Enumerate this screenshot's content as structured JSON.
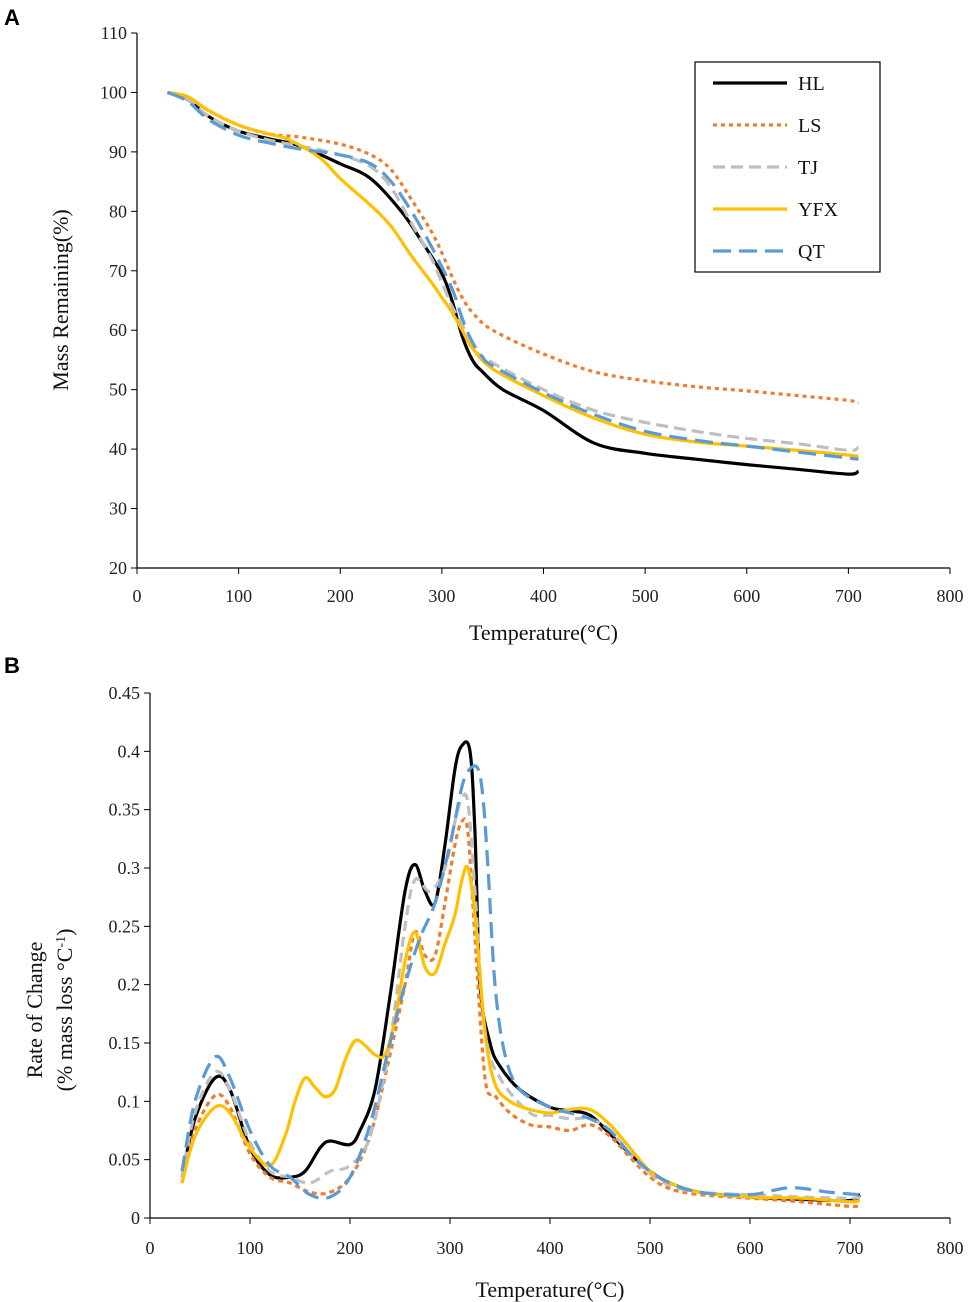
{
  "chart_data": [
    {
      "panel_label": "A",
      "type": "line",
      "title": "",
      "xlabel": "Temperature(°C)",
      "ylabel": "Mass Remaining(%)",
      "xlim": [
        0,
        800
      ],
      "ylim": [
        20,
        110
      ],
      "xticks": [
        0,
        100,
        200,
        300,
        400,
        500,
        600,
        700,
        800
      ],
      "yticks": [
        20,
        30,
        40,
        50,
        60,
        70,
        80,
        90,
        100,
        110
      ],
      "grid": false,
      "legend_position": "top-right",
      "series": [
        {
          "name": "HL",
          "color": "#000000",
          "dash": "solid",
          "x": [
            30,
            50,
            70,
            100,
            130,
            160,
            200,
            230,
            260,
            280,
            300,
            310,
            320,
            330,
            340,
            360,
            400,
            450,
            500,
            550,
            600,
            650,
            700,
            710
          ],
          "y": [
            100,
            98.8,
            96,
            93.5,
            92.2,
            91,
            88,
            85.5,
            80,
            75,
            69.5,
            65,
            59,
            55,
            53,
            50,
            46.5,
            41,
            39.3,
            38.3,
            37.4,
            36.6,
            35.8,
            36.3
          ]
        },
        {
          "name": "LS",
          "color": "#ED7D31",
          "dash": "4 4",
          "x": [
            30,
            50,
            70,
            100,
            130,
            160,
            200,
            230,
            250,
            270,
            290,
            300,
            310,
            320,
            330,
            350,
            400,
            450,
            500,
            550,
            600,
            650,
            700,
            710
          ],
          "y": [
            100,
            99,
            97,
            94.5,
            93,
            92.5,
            91.3,
            89.5,
            87,
            82,
            76.5,
            73,
            69,
            65.5,
            63,
            60,
            56,
            53,
            51.5,
            50.5,
            49.8,
            49,
            48.2,
            47.8
          ]
        },
        {
          "name": "TJ",
          "color": "#BFBFBF",
          "dash": "12 6",
          "x": [
            30,
            50,
            70,
            100,
            130,
            160,
            200,
            230,
            250,
            270,
            290,
            300,
            310,
            320,
            330,
            350,
            400,
            450,
            500,
            550,
            600,
            650,
            700,
            710
          ],
          "y": [
            100,
            98.8,
            96,
            93.5,
            92,
            91,
            89.5,
            87.5,
            84,
            78,
            72,
            68,
            64,
            61,
            57,
            54.5,
            50,
            46.5,
            44.5,
            43,
            41.8,
            40.9,
            39.8,
            40.3
          ]
        },
        {
          "name": "YFX",
          "color": "#FFC000",
          "dash": "solid",
          "x": [
            30,
            50,
            70,
            100,
            130,
            150,
            180,
            200,
            230,
            250,
            270,
            290,
            300,
            310,
            320,
            330,
            350,
            400,
            450,
            500,
            550,
            600,
            650,
            700,
            710
          ],
          "y": [
            100,
            99.3,
            97,
            94.5,
            93,
            92,
            89,
            85.5,
            81,
            77.5,
            72.5,
            68,
            65.5,
            63,
            60,
            57,
            53.5,
            49,
            45.2,
            42.5,
            41.2,
            40.5,
            39.8,
            39,
            38.8
          ]
        },
        {
          "name": "QT",
          "color": "#5B9BD5",
          "dash": "18 8",
          "x": [
            30,
            50,
            70,
            100,
            130,
            160,
            200,
            230,
            250,
            270,
            290,
            310,
            320,
            330,
            340,
            350,
            400,
            450,
            500,
            550,
            600,
            650,
            700,
            710
          ],
          "y": [
            100,
            98.5,
            95.5,
            92.8,
            91.5,
            90.5,
            89.5,
            88,
            85,
            80,
            74,
            67,
            62,
            58,
            55.5,
            54,
            49.5,
            45.8,
            43,
            41.5,
            40.5,
            39.5,
            38.5,
            38.3
          ]
        }
      ]
    },
    {
      "panel_label": "B",
      "type": "line",
      "title": "",
      "xlabel": "Temperature(°C)",
      "ylabel": "Rate of  Change",
      "ylabel_line2": "(% mass loss °C",
      "ylabel_sup": "-1",
      "ylabel_close": ")",
      "xlim": [
        0,
        800
      ],
      "ylim": [
        0,
        0.45
      ],
      "xticks": [
        0,
        100,
        200,
        300,
        400,
        500,
        600,
        700,
        800
      ],
      "yticks": [
        0,
        0.05,
        0.1,
        0.15,
        0.2,
        0.25,
        0.3,
        0.35,
        0.4,
        0.45
      ],
      "ytick_labels": [
        "0",
        "0.05",
        "0.1",
        "0.15",
        "0.2",
        "0.25",
        "0.3",
        "0.35",
        "0.4",
        "0.45"
      ],
      "grid": false,
      "series": [
        {
          "name": "HL",
          "color": "#000000",
          "dash": "solid",
          "x": [
            32,
            45,
            65,
            80,
            100,
            120,
            140,
            155,
            170,
            180,
            200,
            210,
            225,
            240,
            255,
            265,
            275,
            285,
            295,
            305,
            312,
            320,
            325,
            330,
            340,
            350,
            370,
            400,
            420,
            440,
            460,
            480,
            500,
            520,
            550,
            600,
            650,
            700,
            710
          ],
          "y": [
            0.035,
            0.085,
            0.12,
            0.11,
            0.06,
            0.037,
            0.035,
            0.04,
            0.06,
            0.066,
            0.063,
            0.075,
            0.11,
            0.19,
            0.28,
            0.303,
            0.28,
            0.27,
            0.32,
            0.385,
            0.405,
            0.4,
            0.33,
            0.2,
            0.15,
            0.13,
            0.11,
            0.095,
            0.092,
            0.088,
            0.072,
            0.055,
            0.04,
            0.03,
            0.022,
            0.018,
            0.016,
            0.015,
            0.02
          ]
        },
        {
          "name": "LS",
          "color": "#ED7D31",
          "dash": "5 4",
          "x": [
            32,
            45,
            65,
            80,
            100,
            120,
            140,
            160,
            180,
            200,
            220,
            240,
            255,
            265,
            275,
            285,
            295,
            305,
            312,
            318,
            325,
            335,
            345,
            360,
            380,
            400,
            420,
            440,
            460,
            480,
            500,
            520,
            550,
            600,
            650,
            700,
            710
          ],
          "y": [
            0.03,
            0.075,
            0.105,
            0.095,
            0.055,
            0.035,
            0.03,
            0.022,
            0.022,
            0.035,
            0.07,
            0.14,
            0.2,
            0.245,
            0.225,
            0.225,
            0.27,
            0.32,
            0.34,
            0.33,
            0.24,
            0.12,
            0.105,
            0.09,
            0.08,
            0.078,
            0.075,
            0.08,
            0.07,
            0.052,
            0.035,
            0.025,
            0.02,
            0.017,
            0.014,
            0.01,
            0.011
          ]
        },
        {
          "name": "TJ",
          "color": "#BFBFBF",
          "dash": "10 6",
          "x": [
            32,
            45,
            65,
            80,
            100,
            120,
            140,
            160,
            180,
            200,
            220,
            240,
            255,
            265,
            280,
            295,
            305,
            312,
            318,
            325,
            335,
            350,
            380,
            400,
            420,
            440,
            460,
            480,
            500,
            520,
            550,
            600,
            650,
            700,
            710
          ],
          "y": [
            0.035,
            0.09,
            0.125,
            0.11,
            0.065,
            0.04,
            0.035,
            0.03,
            0.04,
            0.045,
            0.07,
            0.15,
            0.25,
            0.29,
            0.28,
            0.3,
            0.34,
            0.36,
            0.355,
            0.28,
            0.16,
            0.12,
            0.09,
            0.088,
            0.085,
            0.085,
            0.075,
            0.055,
            0.038,
            0.028,
            0.022,
            0.02,
            0.018,
            0.017,
            0.018
          ]
        },
        {
          "name": "YFX",
          "color": "#FFC000",
          "dash": "solid",
          "x": [
            32,
            45,
            65,
            80,
            100,
            120,
            135,
            145,
            155,
            165,
            175,
            185,
            195,
            205,
            215,
            225,
            235,
            245,
            255,
            265,
            275,
            285,
            295,
            305,
            312,
            318,
            325,
            335,
            345,
            360,
            380,
            400,
            420,
            440,
            460,
            480,
            500,
            520,
            550,
            600,
            650,
            700,
            710
          ],
          "y": [
            0.03,
            0.07,
            0.095,
            0.09,
            0.06,
            0.045,
            0.07,
            0.1,
            0.12,
            0.112,
            0.104,
            0.11,
            0.135,
            0.152,
            0.148,
            0.14,
            0.14,
            0.17,
            0.22,
            0.245,
            0.215,
            0.21,
            0.235,
            0.26,
            0.29,
            0.3,
            0.26,
            0.16,
            0.115,
            0.1,
            0.093,
            0.09,
            0.093,
            0.093,
            0.08,
            0.06,
            0.04,
            0.03,
            0.022,
            0.018,
            0.017,
            0.014,
            0.015
          ]
        },
        {
          "name": "QT",
          "color": "#5B9BD5",
          "dash": "16 8",
          "x": [
            32,
            45,
            65,
            80,
            100,
            120,
            140,
            160,
            180,
            200,
            220,
            240,
            255,
            270,
            285,
            300,
            312,
            320,
            328,
            333,
            338,
            345,
            355,
            370,
            400,
            420,
            440,
            460,
            480,
            500,
            520,
            550,
            600,
            640,
            680,
            710
          ],
          "y": [
            0.04,
            0.1,
            0.138,
            0.12,
            0.075,
            0.045,
            0.035,
            0.02,
            0.018,
            0.035,
            0.08,
            0.15,
            0.2,
            0.24,
            0.27,
            0.32,
            0.37,
            0.385,
            0.385,
            0.36,
            0.3,
            0.2,
            0.14,
            0.11,
            0.095,
            0.09,
            0.085,
            0.075,
            0.055,
            0.04,
            0.03,
            0.022,
            0.02,
            0.026,
            0.022,
            0.02
          ]
        }
      ]
    }
  ]
}
